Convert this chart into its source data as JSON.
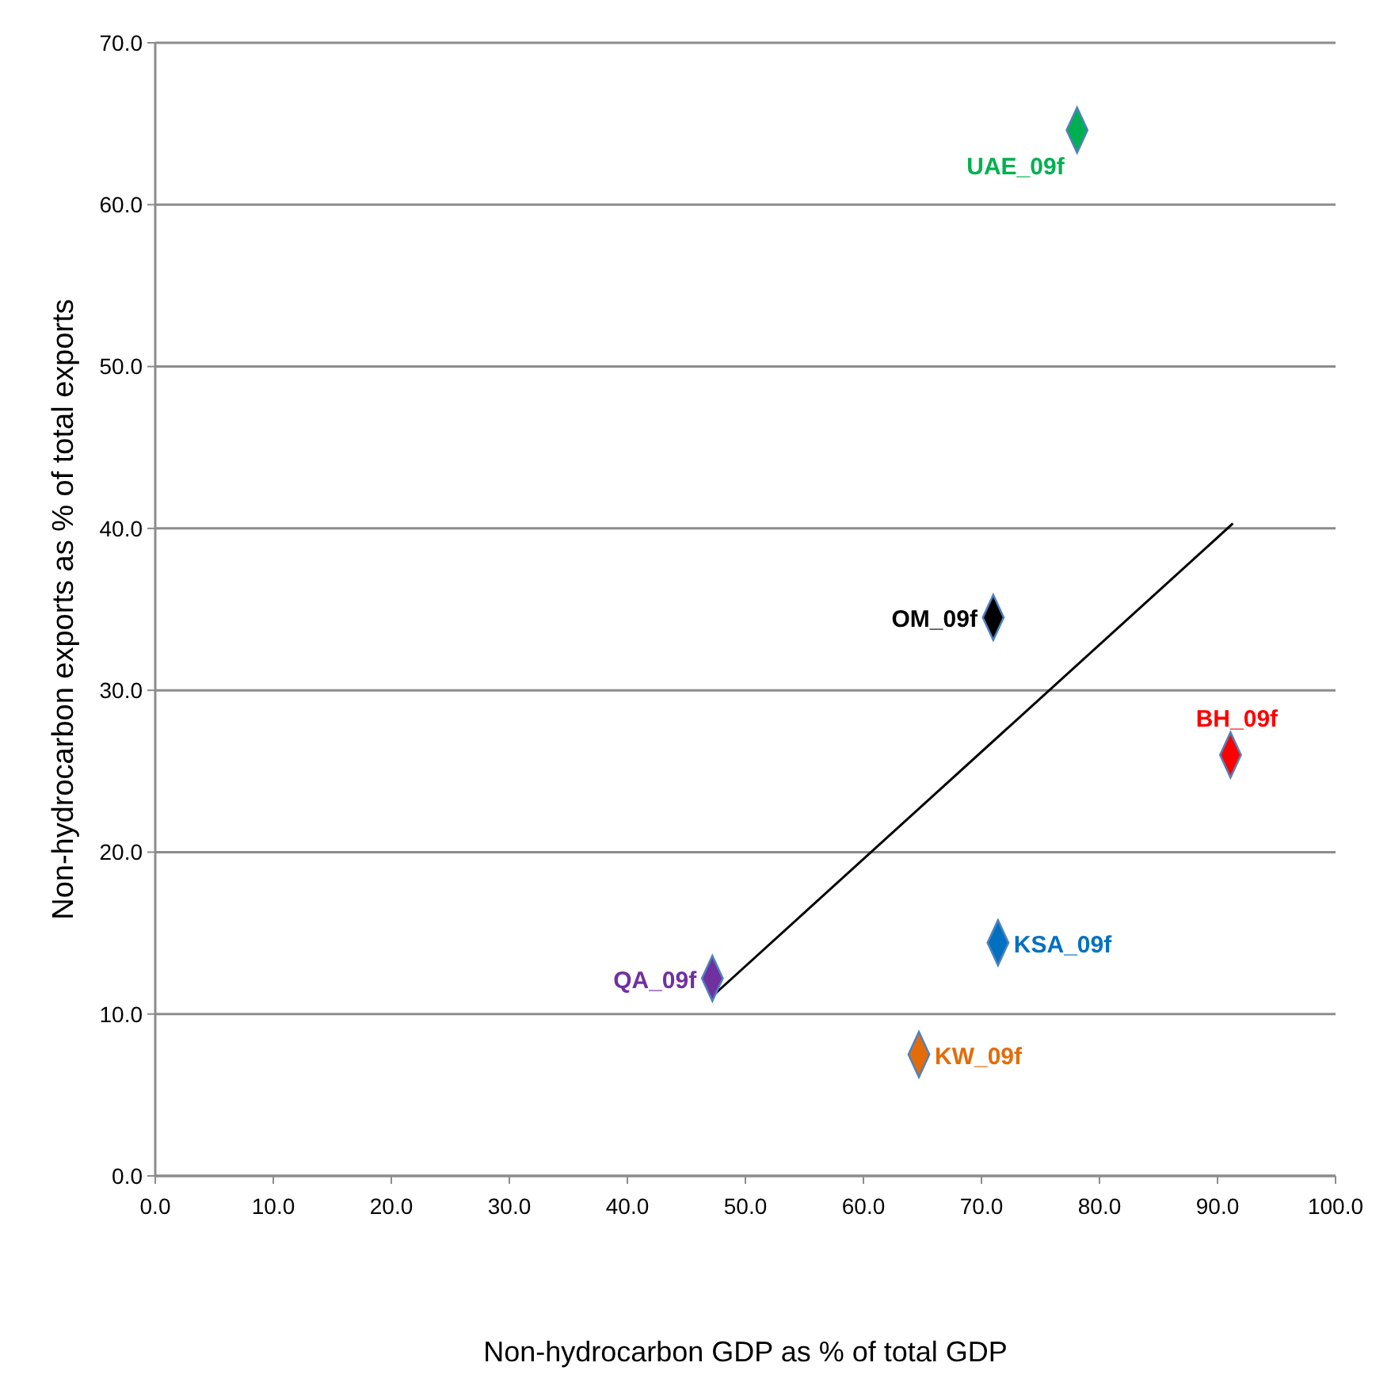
{
  "chart_data": {
    "type": "scatter",
    "xlabel": "Non-hydrocarbon GDP as % of total GDP",
    "ylabel": "Non-hydrocarbon exports as % of total exports",
    "xlim": [
      0,
      100
    ],
    "xticks": [
      {
        "value": 0,
        "label": "0.0"
      },
      {
        "value": 10,
        "label": "10.0"
      },
      {
        "value": 20,
        "label": "20.0"
      },
      {
        "value": 30,
        "label": "30.0"
      },
      {
        "value": 40,
        "label": "40.0"
      },
      {
        "value": 50,
        "label": "50.0"
      },
      {
        "value": 60,
        "label": "60.0"
      },
      {
        "value": 70,
        "label": "70.0"
      },
      {
        "value": 80,
        "label": "80.0"
      },
      {
        "value": 90,
        "label": "90.0"
      },
      {
        "value": 100,
        "label": "100.0"
      }
    ],
    "ylim": [
      0,
      70
    ],
    "yticks": [
      {
        "value": 0,
        "label": "0.0"
      },
      {
        "value": 10,
        "label": "10.0"
      },
      {
        "value": 20,
        "label": "20.0"
      },
      {
        "value": 30,
        "label": "30.0"
      },
      {
        "value": 40,
        "label": "40.0"
      },
      {
        "value": 50,
        "label": "50.0"
      },
      {
        "value": 60,
        "label": "60.0"
      },
      {
        "value": 70,
        "label": "70.0"
      }
    ],
    "grid": "y",
    "marker": "diamond",
    "series": [
      {
        "name": "UAE_09f",
        "color": "#00b050",
        "x": [
          78.1
        ],
        "values": [
          64.6
        ]
      },
      {
        "name": "OM_09f",
        "color": "#000000",
        "x": [
          71.0
        ],
        "values": [
          34.5
        ]
      },
      {
        "name": "BH_09f",
        "color": "#ff0000",
        "x": [
          91.1
        ],
        "values": [
          26.0
        ]
      },
      {
        "name": "KSA_09f",
        "color": "#0070c0",
        "x": [
          71.4
        ],
        "values": [
          14.4
        ]
      },
      {
        "name": "QA_09f",
        "color": "#7030a0",
        "x": [
          47.2
        ],
        "values": [
          12.2
        ]
      },
      {
        "name": "KW_09f",
        "color": "#e36c09",
        "x": [
          64.7
        ],
        "values": [
          7.5
        ]
      },
      {
        "type": "line",
        "color": "#000000",
        "x": [
          47.2,
          91.3
        ],
        "values": [
          11.1,
          40.3
        ],
        "marker": "none"
      }
    ]
  }
}
